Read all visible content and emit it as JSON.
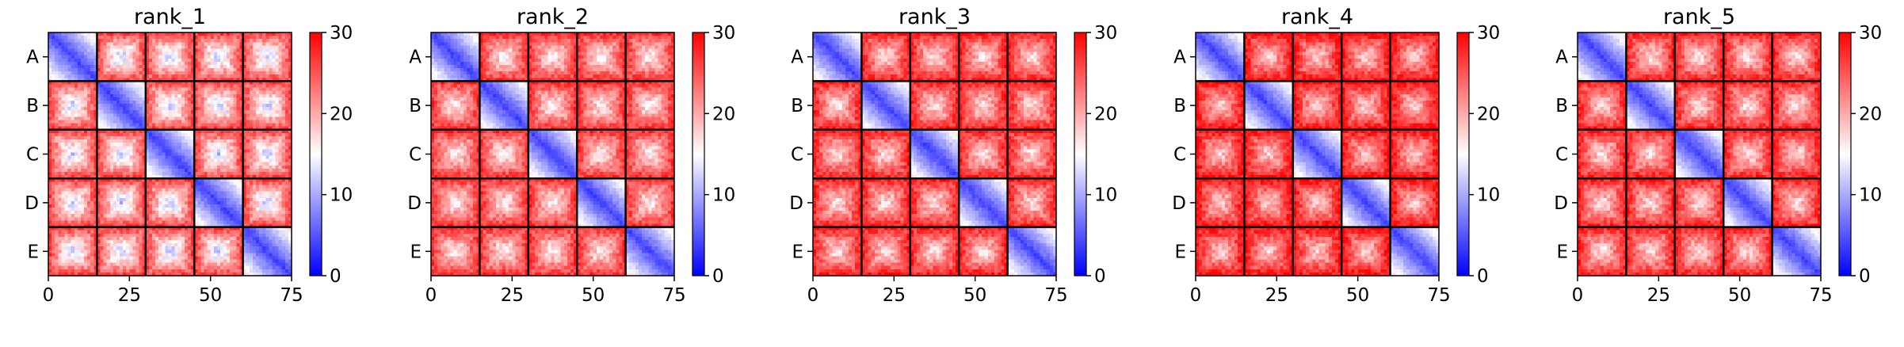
{
  "chart_data": [
    {
      "type": "heatmap",
      "title": "rank_1",
      "row_labels": [
        "A",
        "B",
        "C",
        "D",
        "E"
      ],
      "xticks": [
        0,
        25,
        50,
        75
      ],
      "xlim": [
        0,
        75
      ],
      "block_boundaries": [
        15,
        30,
        45,
        60
      ],
      "colorbar": {
        "ticks": [
          0,
          10,
          20,
          30
        ],
        "range": [
          0,
          30
        ],
        "colormap": "bwr",
        "colors": [
          "#0000ff",
          "#ffffff",
          "#ff0000"
        ]
      },
      "summary": {
        "diagonal_block_value": 3,
        "off_diagonal_value": 20
      }
    },
    {
      "type": "heatmap",
      "title": "rank_2",
      "row_labels": [
        "A",
        "B",
        "C",
        "D",
        "E"
      ],
      "xticks": [
        0,
        25,
        50,
        75
      ],
      "xlim": [
        0,
        75
      ],
      "block_boundaries": [
        15,
        30,
        45,
        60
      ],
      "colorbar": {
        "ticks": [
          0,
          10,
          20,
          30
        ],
        "range": [
          0,
          30
        ],
        "colormap": "bwr",
        "colors": [
          "#0000ff",
          "#ffffff",
          "#ff0000"
        ]
      },
      "summary": {
        "diagonal_block_value": 3,
        "off_diagonal_value": 21
      }
    },
    {
      "type": "heatmap",
      "title": "rank_3",
      "row_labels": [
        "A",
        "B",
        "C",
        "D",
        "E"
      ],
      "xticks": [
        0,
        25,
        50,
        75
      ],
      "xlim": [
        0,
        75
      ],
      "block_boundaries": [
        15,
        30,
        45,
        60
      ],
      "colorbar": {
        "ticks": [
          0,
          10,
          20,
          30
        ],
        "range": [
          0,
          30
        ],
        "colormap": "bwr",
        "colors": [
          "#0000ff",
          "#ffffff",
          "#ff0000"
        ]
      },
      "summary": {
        "diagonal_block_value": 3,
        "off_diagonal_value": 22
      }
    },
    {
      "type": "heatmap",
      "title": "rank_4",
      "row_labels": [
        "A",
        "B",
        "C",
        "D",
        "E"
      ],
      "xticks": [
        0,
        25,
        50,
        75
      ],
      "xlim": [
        0,
        75
      ],
      "block_boundaries": [
        15,
        30,
        45,
        60
      ],
      "colorbar": {
        "ticks": [
          0,
          10,
          20,
          30
        ],
        "range": [
          0,
          30
        ],
        "colormap": "bwr",
        "colors": [
          "#0000ff",
          "#ffffff",
          "#ff0000"
        ]
      },
      "summary": {
        "diagonal_block_value": 3,
        "off_diagonal_value": 23
      }
    },
    {
      "type": "heatmap",
      "title": "rank_5",
      "row_labels": [
        "A",
        "B",
        "C",
        "D",
        "E"
      ],
      "xticks": [
        0,
        25,
        50,
        75
      ],
      "xlim": [
        0,
        75
      ],
      "block_boundaries": [
        15,
        30,
        45,
        60
      ],
      "colorbar": {
        "ticks": [
          0,
          10,
          20,
          30
        ],
        "range": [
          0,
          30
        ],
        "colormap": "bwr",
        "colors": [
          "#0000ff",
          "#ffffff",
          "#ff0000"
        ]
      },
      "summary": {
        "diagonal_block_value": 3,
        "off_diagonal_value": 22
      }
    }
  ]
}
